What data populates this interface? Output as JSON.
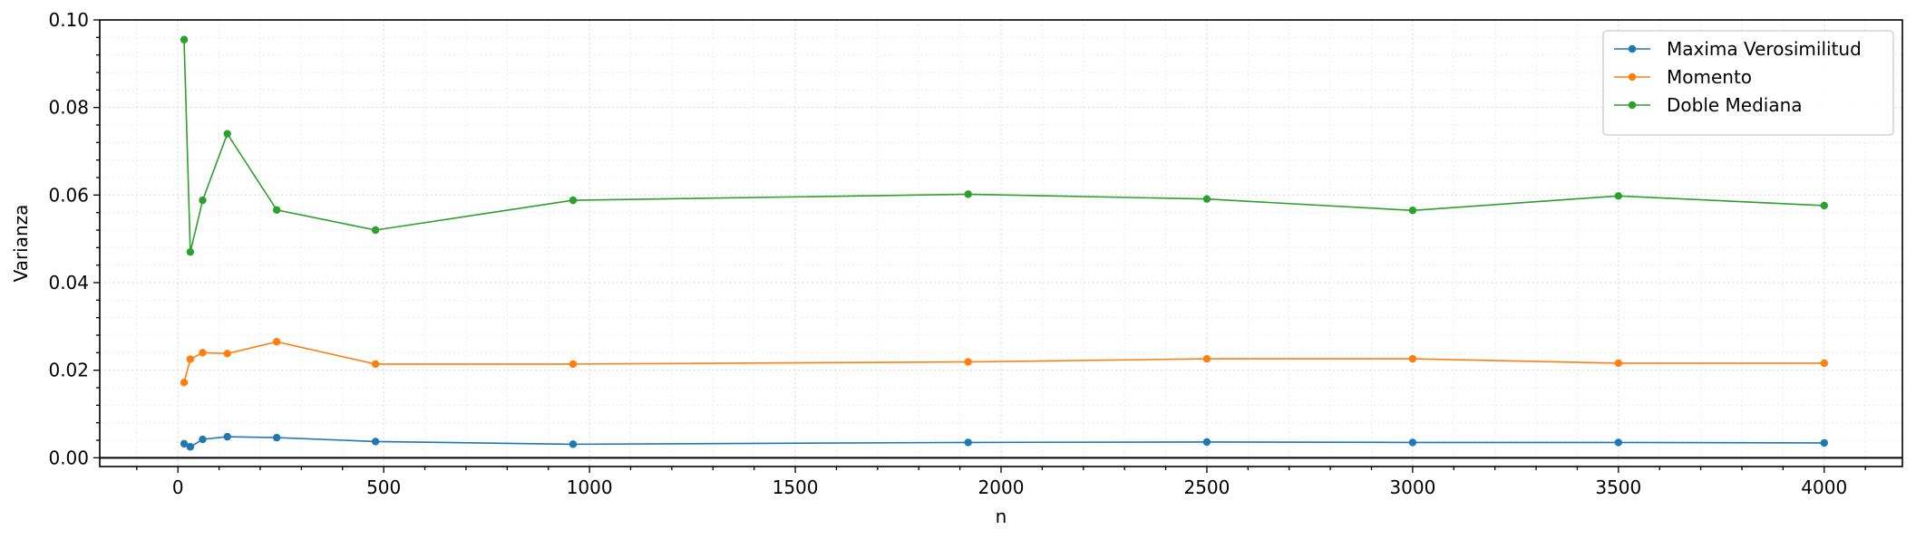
{
  "chart_data": {
    "type": "line",
    "title": "",
    "xlabel": "n",
    "ylabel": "Varianza",
    "xlim": [
      -190,
      4190
    ],
    "ylim": [
      -0.002,
      0.1
    ],
    "x_ticks": [
      0,
      500,
      1000,
      1500,
      2000,
      2500,
      3000,
      3500,
      4000
    ],
    "x_tick_labels": [
      "0",
      "500",
      "1000",
      "1500",
      "2000",
      "2500",
      "3000",
      "3500",
      "4000"
    ],
    "y_ticks": [
      0.0,
      0.02,
      0.04,
      0.06,
      0.08,
      0.1
    ],
    "y_tick_labels": [
      "0.00",
      "0.02",
      "0.04",
      "0.06",
      "0.08",
      "0.10"
    ],
    "grid": true,
    "zero_line": true,
    "legend_position": "top-right",
    "x": [
      15,
      30,
      60,
      120,
      240,
      480,
      960,
      1920,
      2500,
      3000,
      3500,
      4000
    ],
    "series": [
      {
        "name": "Maxima Verosimilitud",
        "color": "#1f77b4",
        "values": [
          0.0032,
          0.0025,
          0.0042,
          0.0048,
          0.0046,
          0.0037,
          0.0031,
          0.0035,
          0.0036,
          0.0035,
          0.0035,
          0.0034
        ]
      },
      {
        "name": "Momento",
        "color": "#ff7f0e",
        "values": [
          0.0172,
          0.0225,
          0.024,
          0.0238,
          0.0265,
          0.0214,
          0.0214,
          0.0219,
          0.0226,
          0.0226,
          0.0216,
          0.0216
        ]
      },
      {
        "name": "Doble Mediana",
        "color": "#2ca02c",
        "values": [
          0.0955,
          0.047,
          0.0588,
          0.074,
          0.0566,
          0.052,
          0.0588,
          0.0602,
          0.0591,
          0.0565,
          0.0598,
          0.0576
        ]
      }
    ]
  }
}
